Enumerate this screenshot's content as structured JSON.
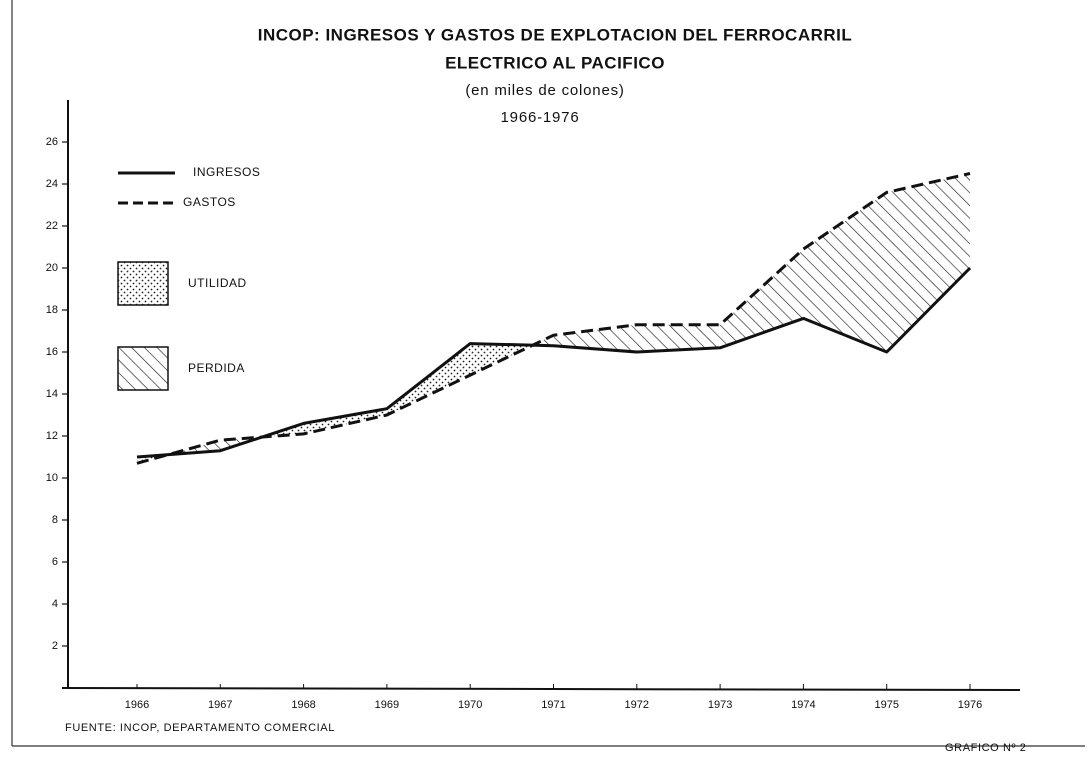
{
  "chart_data": {
    "type": "line",
    "title": [
      "INCOP: INGRESOS Y GASTOS DE EXPLOTACION DEL FERROCARRIL",
      "ELECTRICO AL PACIFICO"
    ],
    "subtitle": [
      "(en miles de colones)",
      "1966-1976"
    ],
    "x": [
      1966,
      1967,
      1968,
      1969,
      1970,
      1971,
      1972,
      1973,
      1974,
      1975,
      1976
    ],
    "series": [
      {
        "name": "INGRESOS",
        "color": "#111111",
        "style": "solid",
        "values": [
          11.0,
          11.3,
          12.6,
          13.3,
          16.4,
          16.3,
          16.0,
          16.2,
          17.6,
          16.0,
          20.0
        ]
      },
      {
        "name": "GASTOS",
        "color": "#111111",
        "style": "dashed",
        "values": [
          10.7,
          11.8,
          12.1,
          13.0,
          14.9,
          16.8,
          17.3,
          17.3,
          20.9,
          23.6,
          24.5
        ]
      }
    ],
    "areas": [
      {
        "name": "UTILIDAD",
        "fill": "dots"
      },
      {
        "name": "PERDIDA",
        "fill": "hatch"
      }
    ],
    "xlim": [
      1965.1,
      1976.6
    ],
    "xticks": [
      1966,
      1967,
      1968,
      1969,
      1970,
      1971,
      1972,
      1973,
      1974,
      1975,
      1976
    ],
    "ylim": [
      0,
      28
    ],
    "yticks": [
      2,
      4,
      6,
      8,
      10,
      12,
      14,
      16,
      18,
      20,
      22,
      24,
      26
    ],
    "source": "FUENTE: INCOP, DEPARTAMENTO COMERCIAL",
    "figure_label": "GRAFICO Nº 2"
  }
}
